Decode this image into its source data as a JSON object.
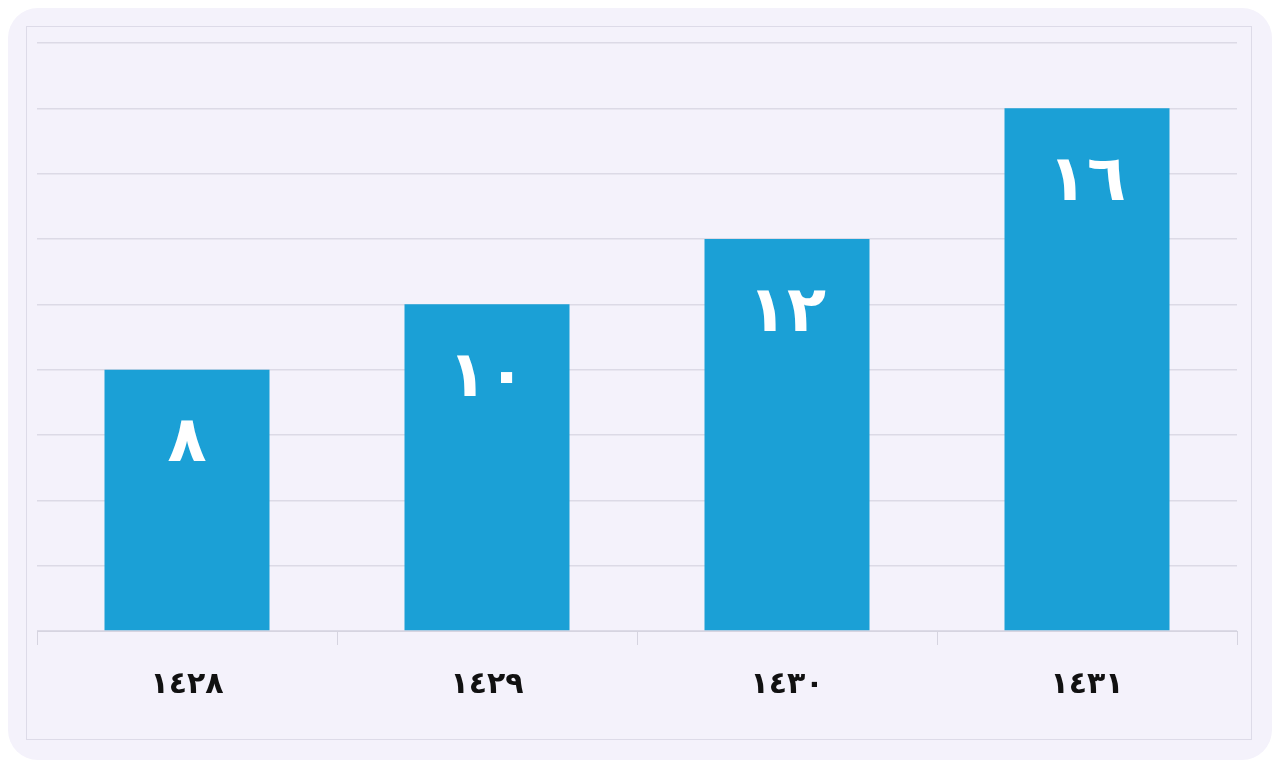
{
  "chart_data": {
    "type": "bar",
    "categories": [
      "١٤٢٨",
      "١٤٢٩",
      "١٤٣٠",
      "١٤٣١"
    ],
    "values": [
      8,
      10,
      12,
      16
    ],
    "value_labels": [
      "٨",
      "١٠",
      "١٢",
      "١٦"
    ],
    "color": "#1ba0d6",
    "ylim": [
      0,
      18
    ],
    "yticks": [
      {
        "value": 0,
        "label": null
      },
      {
        "value": 2,
        "label": null
      },
      {
        "value": 4,
        "label": null
      },
      {
        "value": 6,
        "label": null
      },
      {
        "value": 8,
        "label": null
      },
      {
        "value": 10,
        "label": null
      },
      {
        "value": 12,
        "label": null
      },
      {
        "value": 14,
        "label": null
      },
      {
        "value": 16,
        "label": null
      },
      {
        "value": 18,
        "label": null
      }
    ],
    "grid": "y",
    "tick_labels": "x"
  }
}
